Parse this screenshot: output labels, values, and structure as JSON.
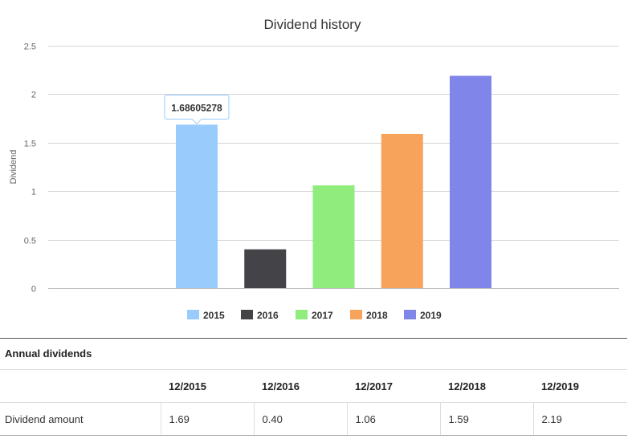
{
  "chart_data": {
    "type": "bar",
    "title": "Dividend history",
    "xlabel": "",
    "ylabel": "Dividend",
    "ylim": [
      0,
      2.5
    ],
    "yticks": [
      0,
      0.5,
      1,
      1.5,
      2,
      2.5
    ],
    "yticks_labels": [
      "0",
      "0.5",
      "1",
      "1.5",
      "2",
      "2.5"
    ],
    "grid": true,
    "legend_position": "bottom",
    "series": [
      {
        "name": "2015",
        "value": 1.68605278,
        "color": "#99ccfd"
      },
      {
        "name": "2016",
        "value": 0.4,
        "color": "#434348"
      },
      {
        "name": "2017",
        "value": 1.06,
        "color": "#90ed7d"
      },
      {
        "name": "2018",
        "value": 1.59,
        "color": "#f7a35c"
      },
      {
        "name": "2019",
        "value": 2.19,
        "color": "#8085e9"
      }
    ],
    "tooltip": {
      "series_index": 0,
      "text": "1.68605278"
    }
  },
  "table": {
    "heading": "Annual dividends",
    "corner": "",
    "columns": [
      "12/2015",
      "12/2016",
      "12/2017",
      "12/2018",
      "12/2019"
    ],
    "row_label": "Dividend amount",
    "values": [
      "1.69",
      "0.40",
      "1.06",
      "1.59",
      "2.19"
    ]
  }
}
